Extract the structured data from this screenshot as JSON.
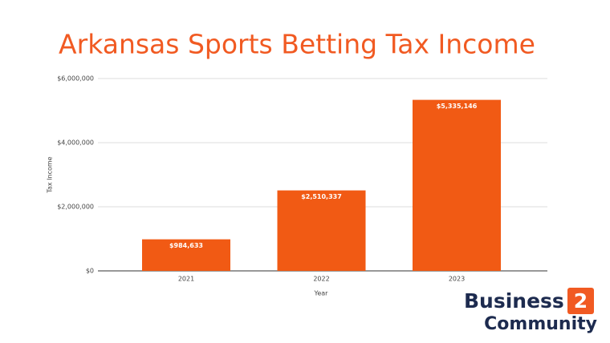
{
  "chart_data": {
    "type": "bar",
    "title": "Arkansas Sports Betting Tax Income",
    "categories": [
      "2021",
      "2022",
      "2023"
    ],
    "values": [
      984633,
      2510337,
      5335146
    ],
    "value_labels": [
      "$984,633",
      "$2,510,337",
      "$5,335,146"
    ],
    "color": "#f15a14",
    "ylim": [
      0,
      6000000
    ],
    "yticks": [
      {
        "value": 0,
        "label": "$0"
      },
      {
        "value": 2000000,
        "label": "$2,000,000"
      },
      {
        "value": 4000000,
        "label": "$4,000,000"
      },
      {
        "value": 6000000,
        "label": "$6,000,000"
      }
    ],
    "grid": true,
    "y_label": "Tax Income",
    "x_label": "Year"
  },
  "logo": {
    "line1": "Business",
    "badge": "2",
    "line2": "Community"
  }
}
